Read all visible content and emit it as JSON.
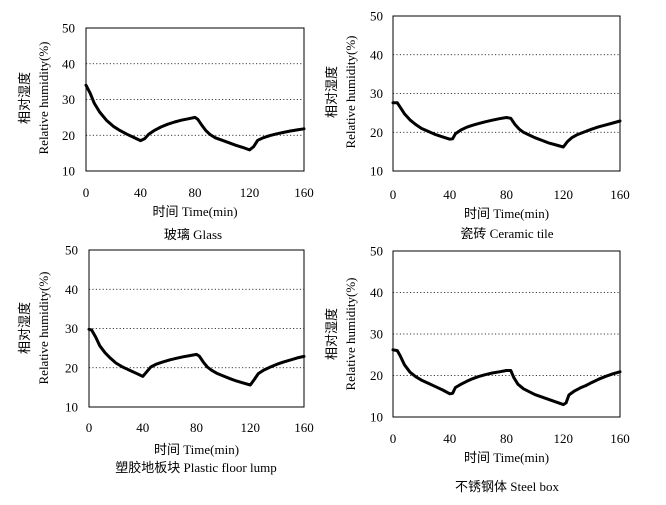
{
  "chart_data": [
    {
      "type": "line",
      "caption": "玻璃 Glass",
      "xlabel": "时间 Time(min)",
      "ylabel_cn": "相对湿度",
      "ylabel_en": "Relative humidity(%)",
      "xlim": [
        0,
        160
      ],
      "ylim": [
        10,
        50
      ],
      "xticks": [
        0,
        40,
        80,
        120,
        160
      ],
      "yticks": [
        10,
        20,
        30,
        40,
        50
      ],
      "grid": "horizontal dotted",
      "x": [
        0,
        3,
        6,
        10,
        15,
        20,
        25,
        30,
        35,
        40,
        43,
        46,
        50,
        55,
        60,
        65,
        70,
        75,
        80,
        82,
        85,
        88,
        91,
        95,
        100,
        105,
        110,
        115,
        120,
        123,
        126,
        130,
        135,
        140,
        145,
        150,
        155,
        160
      ],
      "y": [
        34,
        31.8,
        29,
        26.5,
        24.2,
        22.5,
        21.3,
        20.3,
        19.4,
        18.5,
        19.0,
        20.3,
        21.3,
        22.3,
        23.1,
        23.7,
        24.2,
        24.6,
        25.0,
        24.5,
        22.8,
        21.3,
        20.2,
        19.3,
        18.6,
        17.9,
        17.2,
        16.6,
        15.9,
        16.8,
        18.6,
        19.3,
        19.9,
        20.4,
        20.8,
        21.2,
        21.5,
        21.8
      ]
    },
    {
      "type": "line",
      "caption": "瓷砖 Ceramic tile",
      "xlabel": "时间 Time(min)",
      "ylabel_cn": "相对湿度",
      "ylabel_en": "Relative humidity(%)",
      "xlim": [
        0,
        160
      ],
      "ylim": [
        10,
        50
      ],
      "xticks": [
        0,
        40,
        80,
        120,
        160
      ],
      "yticks": [
        10,
        20,
        30,
        40,
        50
      ],
      "grid": "horizontal dotted",
      "x": [
        0,
        3,
        5,
        8,
        12,
        16,
        20,
        25,
        30,
        35,
        40,
        42,
        44,
        48,
        52,
        56,
        60,
        65,
        70,
        75,
        80,
        83,
        86,
        89,
        92,
        96,
        100,
        105,
        110,
        115,
        120,
        123,
        126,
        130,
        135,
        140,
        145,
        150,
        155,
        160
      ],
      "y": [
        27.6,
        27.6,
        26.5,
        24.8,
        23.2,
        22.0,
        21.0,
        20.2,
        19.4,
        18.8,
        18.2,
        18.3,
        19.6,
        20.6,
        21.3,
        21.8,
        22.2,
        22.7,
        23.1,
        23.5,
        23.8,
        23.6,
        22.0,
        20.8,
        20.0,
        19.3,
        18.6,
        17.9,
        17.2,
        16.7,
        16.2,
        17.6,
        18.6,
        19.4,
        20.1,
        20.8,
        21.4,
        21.9,
        22.4,
        22.9
      ]
    },
    {
      "type": "line",
      "caption": "塑胶地板块 Plastic floor lump",
      "xlabel": "时间 Time(min)",
      "ylabel_cn": "相对湿度",
      "ylabel_en": "Relative humidity(%)",
      "xlim": [
        0,
        160
      ],
      "ylim": [
        10,
        50
      ],
      "xticks": [
        0,
        40,
        80,
        120,
        160
      ],
      "yticks": [
        10,
        20,
        30,
        40,
        50
      ],
      "grid": "horizontal dotted",
      "x": [
        0,
        2,
        5,
        8,
        12,
        16,
        20,
        25,
        30,
        35,
        40,
        43,
        46,
        50,
        55,
        60,
        65,
        70,
        75,
        80,
        82,
        85,
        88,
        91,
        95,
        100,
        105,
        110,
        115,
        120,
        123,
        126,
        130,
        135,
        140,
        145,
        150,
        155,
        160
      ],
      "y": [
        29.8,
        29.6,
        27.8,
        25.6,
        23.8,
        22.4,
        21.2,
        20.2,
        19.4,
        18.6,
        17.8,
        19.0,
        20.2,
        20.9,
        21.5,
        22.0,
        22.4,
        22.8,
        23.1,
        23.4,
        23.0,
        21.5,
        20.2,
        19.4,
        18.6,
        17.9,
        17.2,
        16.6,
        16.1,
        15.6,
        17.0,
        18.5,
        19.4,
        20.2,
        20.9,
        21.5,
        22.0,
        22.5,
        22.9
      ]
    },
    {
      "type": "line",
      "caption": "不锈钢体 Steel box",
      "xlabel": "时间  Time(min)",
      "ylabel_cn": "相对湿度",
      "ylabel_en": "Relative humidity(%)",
      "xlim": [
        0,
        160
      ],
      "ylim": [
        10,
        50
      ],
      "xticks": [
        0,
        40,
        80,
        120,
        160
      ],
      "yticks": [
        10,
        20,
        30,
        40,
        50
      ],
      "grid": "horizontal dotted",
      "x": [
        0,
        3,
        5,
        8,
        12,
        16,
        20,
        25,
        30,
        35,
        40,
        42,
        44,
        48,
        52,
        56,
        60,
        65,
        70,
        75,
        80,
        83,
        85,
        88,
        92,
        96,
        100,
        105,
        110,
        115,
        120,
        122,
        124,
        128,
        132,
        136,
        140,
        145,
        150,
        155,
        160
      ],
      "y": [
        26.2,
        26.0,
        24.8,
        22.6,
        20.8,
        19.7,
        18.9,
        18.1,
        17.3,
        16.5,
        15.6,
        15.7,
        17.1,
        17.9,
        18.6,
        19.2,
        19.7,
        20.2,
        20.6,
        20.9,
        21.2,
        21.2,
        19.6,
        17.9,
        16.8,
        16.1,
        15.4,
        14.8,
        14.2,
        13.6,
        13.0,
        13.4,
        15.3,
        16.3,
        17.0,
        17.6,
        18.3,
        19.1,
        19.8,
        20.4,
        20.9
      ]
    }
  ]
}
